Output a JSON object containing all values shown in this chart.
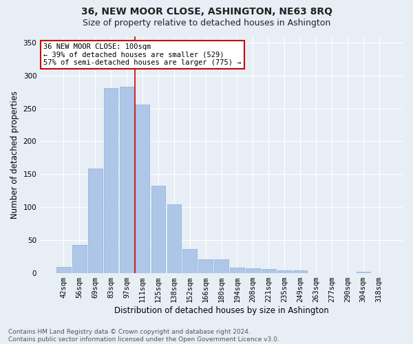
{
  "title": "36, NEW MOOR CLOSE, ASHINGTON, NE63 8RQ",
  "subtitle": "Size of property relative to detached houses in Ashington",
  "xlabel": "Distribution of detached houses by size in Ashington",
  "ylabel": "Number of detached properties",
  "categories": [
    "42sqm",
    "56sqm",
    "69sqm",
    "83sqm",
    "97sqm",
    "111sqm",
    "125sqm",
    "138sqm",
    "152sqm",
    "166sqm",
    "180sqm",
    "194sqm",
    "208sqm",
    "221sqm",
    "235sqm",
    "249sqm",
    "263sqm",
    "277sqm",
    "290sqm",
    "304sqm",
    "318sqm"
  ],
  "values": [
    9,
    42,
    159,
    281,
    283,
    256,
    132,
    104,
    36,
    21,
    21,
    8,
    7,
    6,
    4,
    4,
    0,
    0,
    0,
    2,
    0
  ],
  "bar_color": "#aec6e8",
  "bar_edge_color": "#8ab0d8",
  "vline_x_index": 4.5,
  "vline_color": "#cc0000",
  "annotation_text": "36 NEW MOOR CLOSE: 100sqm\n← 39% of detached houses are smaller (529)\n57% of semi-detached houses are larger (775) →",
  "annotation_box_facecolor": "#ffffff",
  "annotation_box_edgecolor": "#cc0000",
  "ylim": [
    0,
    360
  ],
  "yticks": [
    0,
    50,
    100,
    150,
    200,
    250,
    300,
    350
  ],
  "footer_text": "Contains HM Land Registry data © Crown copyright and database right 2024.\nContains public sector information licensed under the Open Government Licence v3.0.",
  "bg_color": "#e8eef5",
  "plot_bg_color": "#e8eef5",
  "title_fontsize": 10,
  "subtitle_fontsize": 9,
  "label_fontsize": 8.5,
  "tick_fontsize": 7.5,
  "annotation_fontsize": 7.5,
  "footer_fontsize": 6.5
}
